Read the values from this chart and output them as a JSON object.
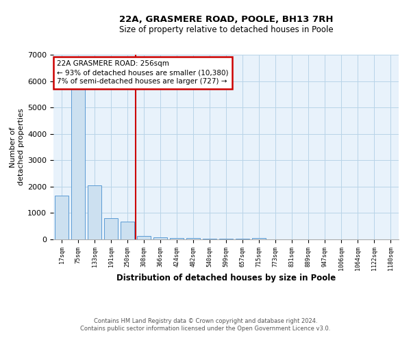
{
  "title": "22A, GRASMERE ROAD, POOLE, BH13 7RH",
  "subtitle": "Size of property relative to detached houses in Poole",
  "xlabel": "Distribution of detached houses by size in Poole",
  "ylabel": "Number of\ndetached properties",
  "bins": [
    "17sqm",
    "75sqm",
    "133sqm",
    "191sqm",
    "250sqm",
    "308sqm",
    "366sqm",
    "424sqm",
    "482sqm",
    "540sqm",
    "599sqm",
    "657sqm",
    "715sqm",
    "773sqm",
    "831sqm",
    "889sqm",
    "947sqm",
    "1006sqm",
    "1064sqm",
    "1122sqm",
    "1180sqm"
  ],
  "bar_values": [
    1650,
    5700,
    2050,
    800,
    680,
    130,
    90,
    60,
    40,
    25,
    20,
    15,
    55,
    0,
    0,
    0,
    0,
    0,
    0,
    0
  ],
  "bar_color": "#cce0f0",
  "bar_edge_color": "#5b9bd5",
  "ylim": [
    0,
    7000
  ],
  "yticks": [
    0,
    1000,
    2000,
    3000,
    4000,
    5000,
    6000,
    7000
  ],
  "red_line_x": 4.5,
  "annotation_text": "22A GRASMERE ROAD: 256sqm\n← 93% of detached houses are smaller (10,380)\n7% of semi-detached houses are larger (727) →",
  "annotation_box_color": "#ffffff",
  "annotation_box_edge": "#cc0000",
  "footer1": "Contains HM Land Registry data © Crown copyright and database right 2024.",
  "footer2": "Contains public sector information licensed under the Open Government Licence v3.0.",
  "grid_color": "#b8d4e8",
  "background_color": "#e8f2fb"
}
